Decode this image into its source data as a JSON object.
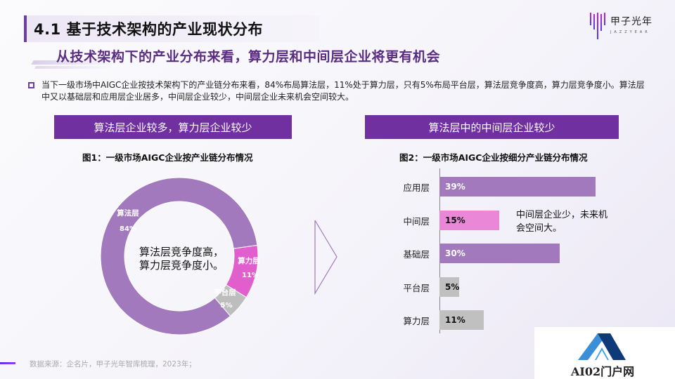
{
  "header": {
    "title": "4.1 基于技术架构的产业现状分布",
    "subtitle": "从技术架构下的产业分布来看，算力层和中间层企业将更有机会",
    "logo_cn": "甲子光年",
    "logo_en": "JAZZYEAR"
  },
  "summary": {
    "text": "当下一级市场中AIGC企业按技术架构下的产业链分布来看，84%布局算法层，11%处于算力层，只有5%布局平台层，算法层竞争度高，算力层竞争度小。算法层中又以基础层和应用层企业居多，中间层企业较少，中间层企业未来机会空间较大。"
  },
  "left_panel": {
    "header": "算法层企业较多，算力层企业较少",
    "figure_title": "图1：一级市场AIGC企业按产业链分布情况",
    "center_note_line1": "算法层竞争度高，",
    "center_note_line2": "算力层竞争度小。"
  },
  "right_panel": {
    "header": "算法层中的中间层企业较少",
    "figure_title": "图2：一级市场AIGC企业按细分产业链分布情况",
    "note": "中间层企业少，未来机会空间大。"
  },
  "chart_data": [
    {
      "type": "pie",
      "subtype": "donut",
      "title": "图1：一级市场AIGC企业按产业链分布情况",
      "categories": [
        "算法层",
        "算力层",
        "平台层"
      ],
      "values": [
        84,
        11,
        5
      ],
      "labels": [
        "84%",
        "11%",
        "5%"
      ],
      "colors": [
        "#a279bd",
        "#e05fcc",
        "#bdbdbd"
      ],
      "annotation": "算法层竞争度高，算力层竞争度小。"
    },
    {
      "type": "bar",
      "orientation": "horizontal",
      "title": "图2：一级市场AIGC企业按细分产业链分布情况",
      "categories": [
        "应用层",
        "中间层",
        "基础层",
        "平台层",
        "算力层"
      ],
      "values": [
        39,
        15,
        30,
        5,
        11
      ],
      "labels": [
        "39%",
        "15%",
        "30%",
        "5%",
        "11%"
      ],
      "colors": [
        "#a279bd",
        "#ea87d7",
        "#a279bd",
        "#c0c0c0",
        "#c0c0c0"
      ],
      "annotation": "中间层企业少，未来机会空间大。",
      "grid": false
    }
  ],
  "footer": {
    "source": "数据来源：企名片，甲子光年智库梳理，2023年；",
    "watermark_logo": "AI02门户网"
  }
}
